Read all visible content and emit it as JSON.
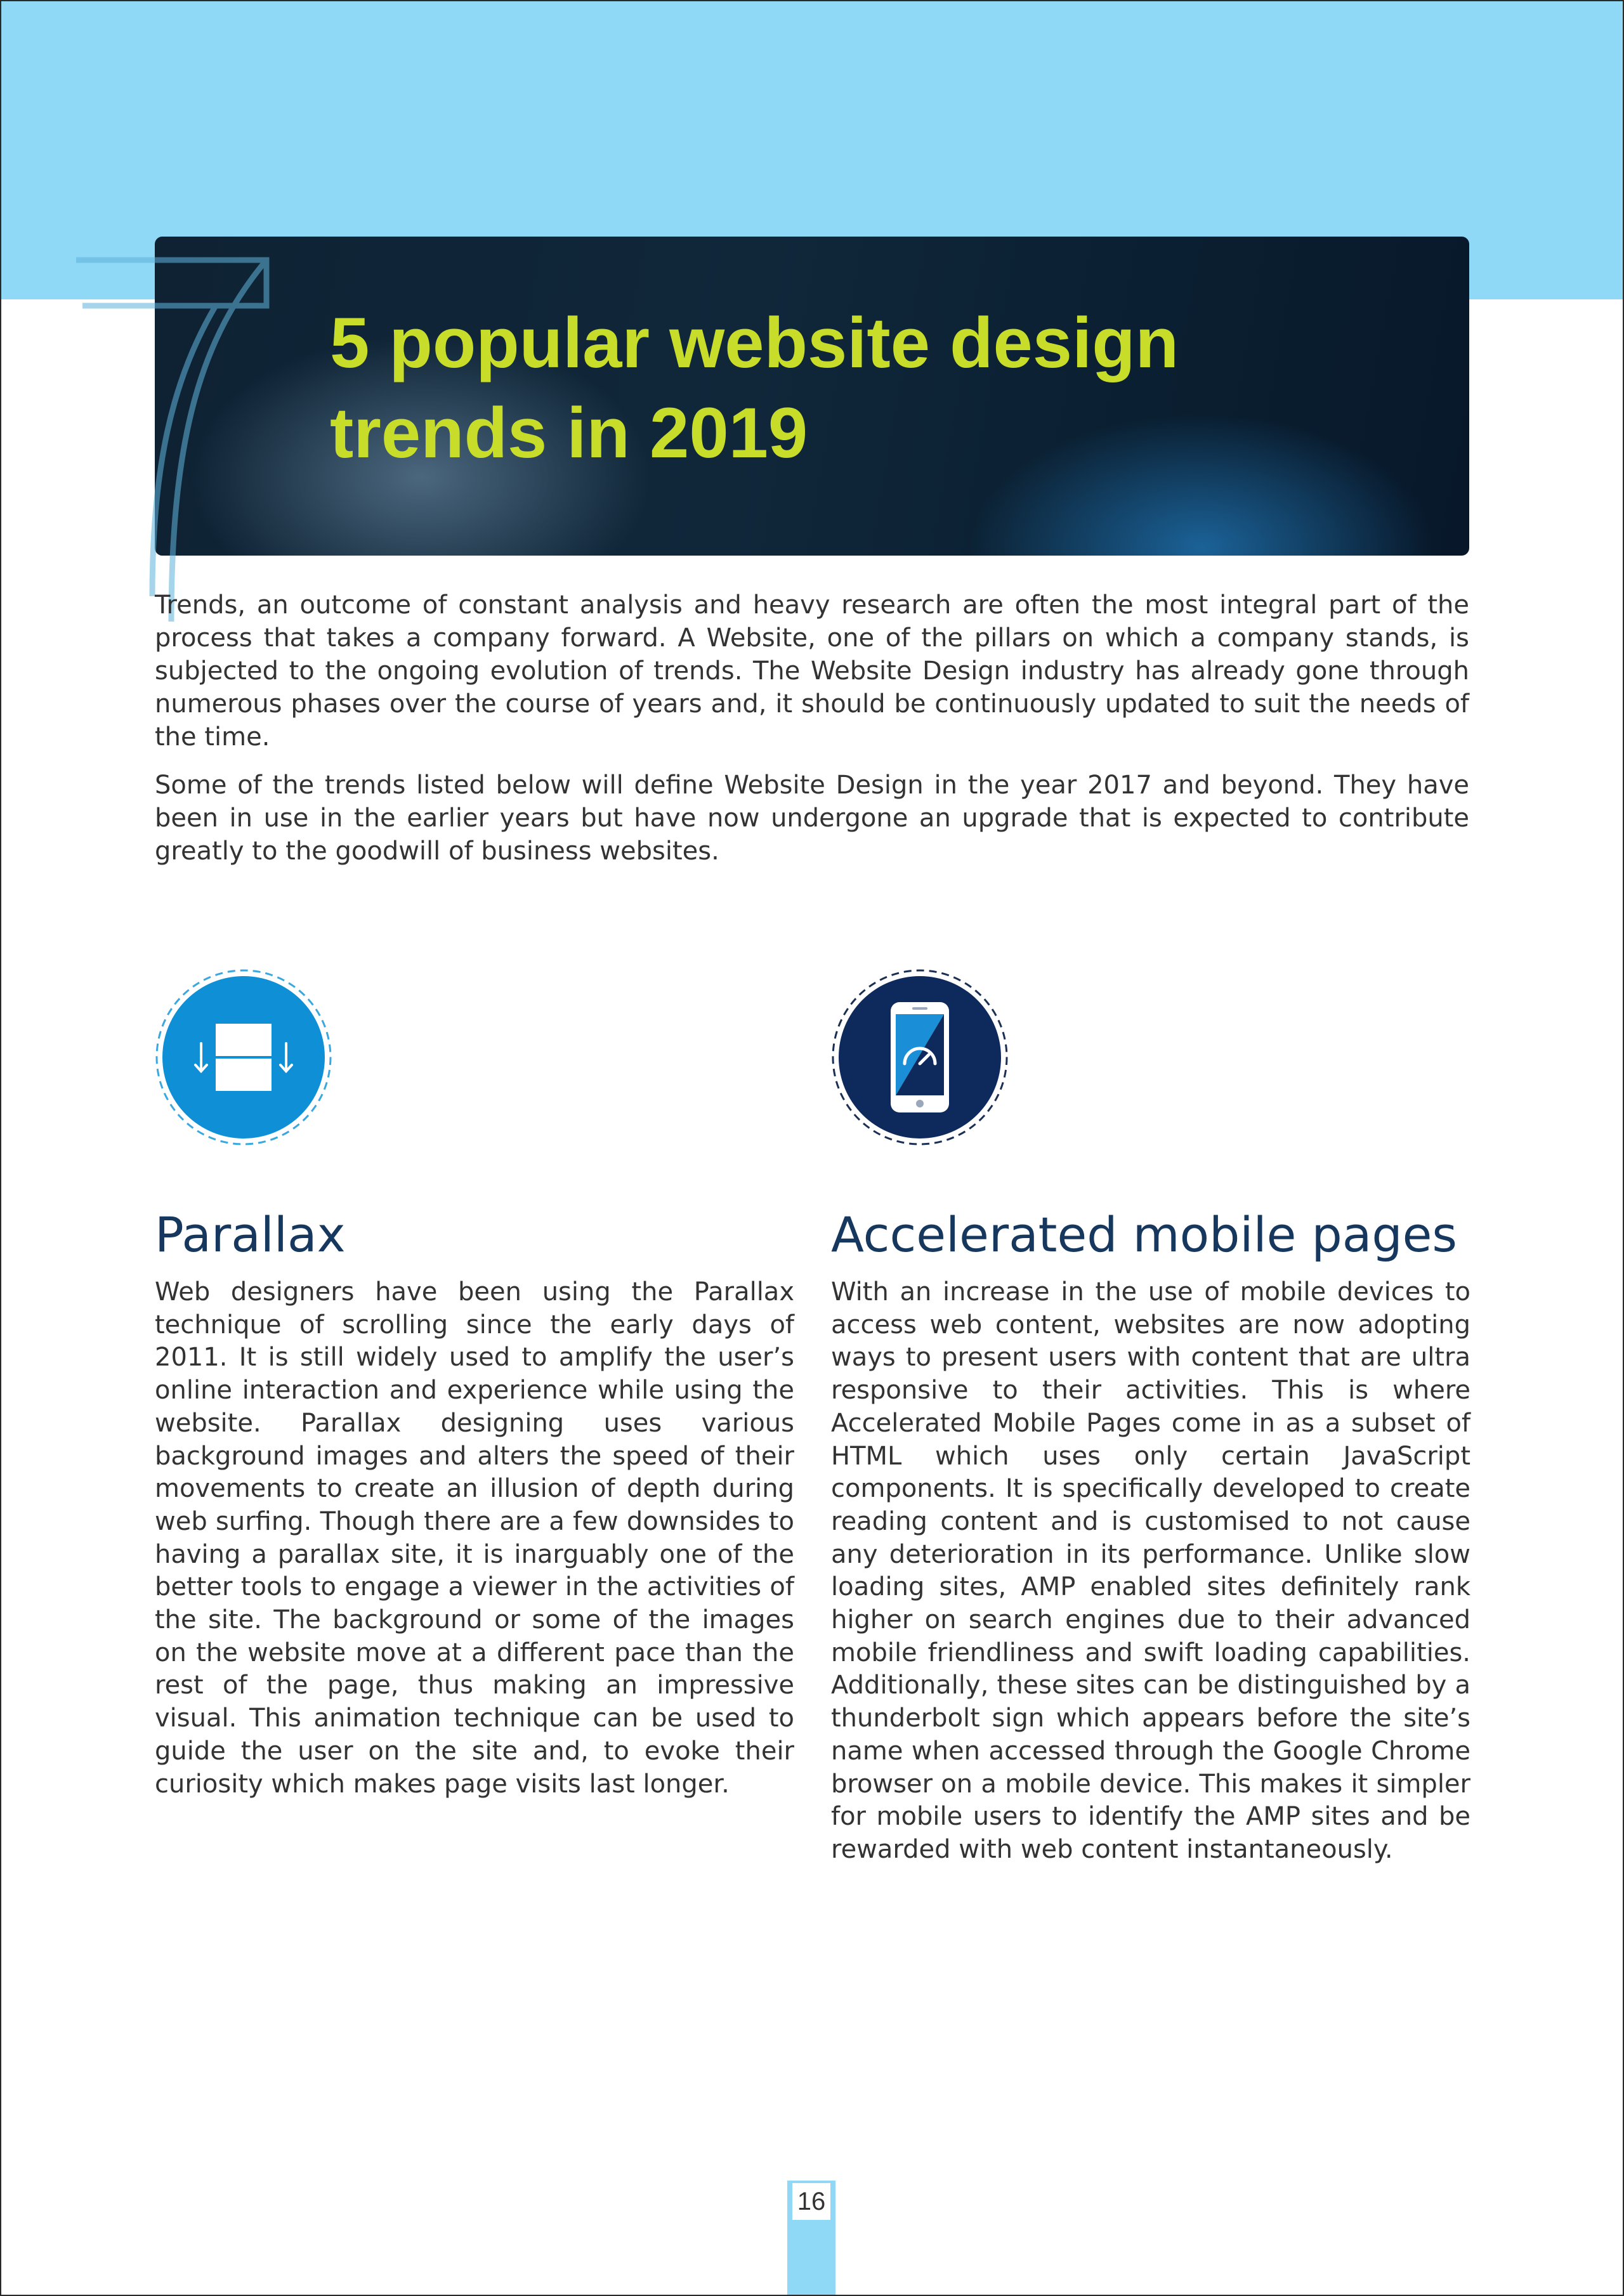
{
  "title": "5 popular website design trends in 2019",
  "intro": {
    "paragraph_1": "Trends, an outcome of constant analysis and heavy research are often the most integral part of the process that takes a company forward. A Website, one of the pillars on which a company stands, is subjected to the ongoing evolution of trends. The Website Design industry has already gone through numerous phases over the course of years and, it should be continuously updated to suit the needs of the time.",
    "paragraph_2": "Some of the trends listed below will define Website Design in the year 2017 and beyond. They have been in use in the earlier years but have now undergone an upgrade that is expected to contribute greatly to the goodwill of business websites."
  },
  "sections": [
    {
      "icon": "parallax-scroll-icon",
      "heading": "Parallax",
      "body": "Web designers have been using the Parallax technique of scrolling since the early days of 2011. It is still widely used to amplify the user’s online interaction and experience while using the website. Parallax designing uses various background images and alters the speed of their movements to create an illusion of depth during web surfing. Though there are a few downsides to having a parallax site, it is inarguably one of the better tools to engage a viewer in the activities of the site. The background or some of the images on the website move at a different pace than the rest of the page, thus making an impressive visual. This animation technique can be used to guide the user on the site and, to evoke their curiosity which makes page visits last longer."
    },
    {
      "icon": "mobile-speed-icon",
      "heading": "Accelerated mobile pages",
      "body": "With an increase in the use of mobile devices to access web content, websites are now adopting ways to present users with content that are ultra responsive to their activities. This is where Accelerated Mobile Pages come in as a subset of HTML which uses only certain JavaScript components. It is specifically developed to create reading content and is customised to not cause any deterioration in its performance. Unlike slow loading sites, AMP enabled sites definitely rank higher on search engines due to their advanced mobile friendliness and swift loading capabilities. Additionally, these sites can be distinguished by a thunderbolt sign which appears before the site’s name when accessed through the Google Chrome browser on a mobile device. This makes it simpler for mobile users to identify the AMP sites and be rewarded with web content instantaneously."
    }
  ],
  "page_number": "16",
  "colors": {
    "band": "#8fd8f6",
    "title": "#c8dc2a",
    "heading": "#16375e",
    "body_text": "#333333",
    "icon_parallax_bg": "#0e8fd6",
    "icon_mobile_bg": "#0e2a5c"
  }
}
